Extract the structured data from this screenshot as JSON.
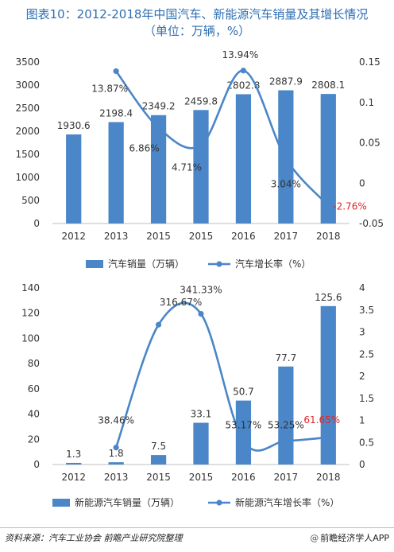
{
  "title": {
    "line1": "图表10：2012-2018年中国汽车、新能源汽车销量及其增长情况",
    "line2": "（单位：万辆，%）"
  },
  "colors": {
    "bar": "#4a86c8",
    "line": "#4a86c8",
    "negative_label": "#e0262a",
    "text": "#333333"
  },
  "chart_data": [
    {
      "type": "bar",
      "categories": [
        "2012",
        "2013",
        "2015",
        "2015",
        "2016",
        "2017",
        "2018"
      ],
      "series": [
        {
          "name": "汽车销量（万辆）",
          "type": "bar",
          "axis": "left",
          "values": [
            1930.6,
            2198.4,
            2349.2,
            2459.8,
            2802.8,
            2887.9,
            2808.1
          ],
          "labels": [
            "1930.6",
            "2198.4",
            "2349.2",
            "2459.8",
            "2802.8",
            "2887.9",
            "2808.1"
          ]
        },
        {
          "name": "汽车增长率（%）",
          "type": "line",
          "axis": "right",
          "values": [
            null,
            0.1387,
            0.0686,
            0.0471,
            0.1394,
            0.0304,
            -0.0276
          ],
          "labels": [
            "",
            "13.87%",
            "6.86%",
            "4.71%",
            "13.94%",
            "3.04%",
            "-2.76%"
          ]
        }
      ],
      "yleft": {
        "min": 0,
        "max": 3500,
        "ticks": [
          "0",
          "500",
          "1000",
          "1500",
          "2000",
          "2500",
          "3000",
          "3500"
        ]
      },
      "yright": {
        "min": -0.05,
        "max": 0.15,
        "ticks": [
          "-0.05",
          "0",
          "0.05",
          "0.1",
          "0.15"
        ]
      },
      "legend": "bottom"
    },
    {
      "type": "bar",
      "categories": [
        "2012",
        "2013",
        "2015",
        "2015",
        "2016",
        "2017",
        "2018"
      ],
      "series": [
        {
          "name": "新能源汽车销量（万辆）",
          "type": "bar",
          "axis": "left",
          "values": [
            1.3,
            1.8,
            7.5,
            33.1,
            50.7,
            77.7,
            125.6
          ],
          "labels": [
            "1.3",
            "1.8",
            "7.5",
            "33.1",
            "50.7",
            "77.7",
            "125.6"
          ]
        },
        {
          "name": "新能源汽车增长率（%）",
          "type": "line",
          "axis": "right",
          "values": [
            null,
            0.3846,
            3.1667,
            3.4133,
            0.5317,
            0.5325,
            0.6165
          ],
          "labels": [
            "",
            "38.46%",
            "316.67%",
            "341.33%",
            "53.17%",
            "53.25%",
            "61.65%"
          ]
        }
      ],
      "yleft": {
        "min": 0,
        "max": 140,
        "ticks": [
          "0",
          "20",
          "40",
          "60",
          "80",
          "100",
          "120",
          "140"
        ]
      },
      "yright": {
        "min": 0,
        "max": 4,
        "ticks": [
          "0",
          "0.5",
          "1",
          "1.5",
          "2",
          "2.5",
          "3",
          "3.5",
          "4"
        ]
      },
      "legend": "bottom"
    }
  ],
  "footer": {
    "source": "资料来源：汽车工业协会  前瞻产业研究院整理",
    "brand_at": "@",
    "brand": "前瞻经济学人APP"
  }
}
